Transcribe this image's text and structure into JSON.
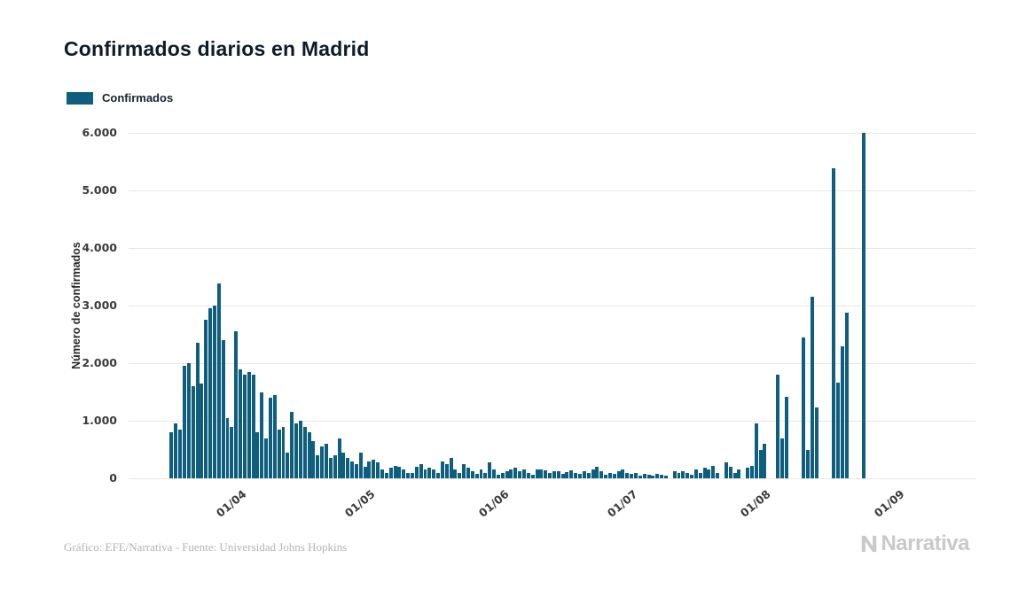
{
  "page": {
    "title": "Confirmados diarios en Madrid",
    "footer_source": "Gráfico: EFE/Narrativa - Fuente: Universidad Johns Hopkins",
    "brand": "Narrativa"
  },
  "legend": {
    "label": "Confirmados",
    "color": "#0f5e7d"
  },
  "chart_data": {
    "type": "bar",
    "title": "Confirmados diarios en Madrid",
    "xlabel": "",
    "ylabel": "Número de confirmados",
    "series_name": "Confirmados",
    "bar_color": "#0f5e7d",
    "grid": true,
    "legend_position": "top-left",
    "ylim": [
      0,
      6000
    ],
    "ytick_step": 1000,
    "ytick_labels": [
      "0",
      "1.000",
      "2.000",
      "3.000",
      "4.000",
      "5.000",
      "6.000"
    ],
    "x_domain": [
      "2020-03-06",
      "2020-09-19"
    ],
    "xticks": [
      {
        "date": "2020-04-01",
        "label": "01/04"
      },
      {
        "date": "2020-05-01",
        "label": "01/05"
      },
      {
        "date": "2020-06-01",
        "label": "01/06"
      },
      {
        "date": "2020-07-01",
        "label": "01/07"
      },
      {
        "date": "2020-08-01",
        "label": "01/08"
      },
      {
        "date": "2020-09-01",
        "label": "01/09"
      }
    ],
    "series_start_date": "2020-03-16",
    "values": [
      800,
      950,
      850,
      1950,
      2000,
      1600,
      2350,
      1650,
      2750,
      2950,
      3000,
      3380,
      2400,
      1050,
      900,
      2550,
      1900,
      1800,
      1850,
      1800,
      800,
      1500,
      700,
      1400,
      1450,
      850,
      900,
      450,
      1150,
      950,
      1000,
      900,
      800,
      650,
      400,
      550,
      600,
      350,
      400,
      700,
      450,
      350,
      300,
      250,
      450,
      200,
      300,
      320,
      280,
      150,
      100,
      180,
      220,
      200,
      150,
      100,
      90,
      200,
      250,
      150,
      180,
      150,
      100,
      300,
      250,
      350,
      150,
      100,
      250,
      180,
      120,
      80,
      150,
      100,
      280,
      150,
      60,
      100,
      120,
      150,
      180,
      130,
      160,
      90,
      60,
      150,
      160,
      140,
      100,
      130,
      120,
      80,
      110,
      140,
      90,
      70,
      130,
      100,
      150,
      200,
      120,
      60,
      100,
      80,
      120,
      150,
      100,
      70,
      90,
      50,
      80,
      60,
      40,
      70,
      60,
      50,
      0,
      120,
      100,
      130,
      90,
      60,
      150,
      100,
      180,
      150,
      220,
      100,
      0,
      270,
      200,
      100,
      150,
      0,
      180,
      220,
      950,
      500,
      600,
      0,
      0,
      1800,
      700,
      1420,
      0,
      0,
      0,
      2450,
      500,
      3160,
      1230,
      0,
      0,
      0,
      5390,
      1660,
      2300,
      2870,
      0,
      0,
      0,
      6000
    ]
  }
}
